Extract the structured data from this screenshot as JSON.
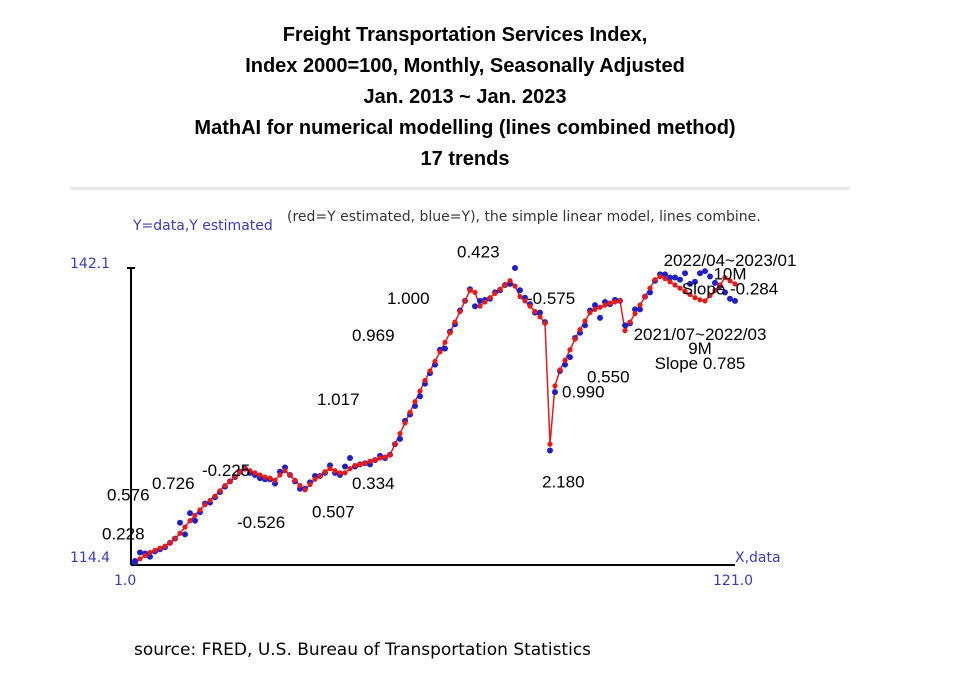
{
  "titles": {
    "line1": "Freight Transportation Services Index,",
    "line2": "Index 2000=100, Monthly, Seasonally Adjusted",
    "line3": "Jan. 2013 ~ Jan. 2023",
    "line4": "MathAI for numerical modelling (lines combined method)",
    "line5": "17 trends"
  },
  "source": "source: FRED, U.S. Bureau of Transportation Statistics",
  "colors": {
    "estimated": "#e41b1b",
    "data": "#1f1fc8",
    "axis_text": "#3b3bb5"
  },
  "chart_data": {
    "type": "scatter",
    "ylabel": "Y=data,Y estimated",
    "xlabel": "X,data",
    "note": "(red=Y estimated, blue=Y), the simple linear model, lines combine.",
    "xlim": [
      1,
      121
    ],
    "ylim": [
      114.4,
      142.1
    ],
    "x_tick_labels": [
      "1.0",
      "121.0"
    ],
    "y_tick_labels": [
      "114.4",
      "142.1"
    ],
    "series": [
      {
        "color": "#e41b1b",
        "values": [
          114.4,
          114.7,
          115.0,
          115.3,
          115.5,
          115.7,
          115.9,
          116.2,
          116.6,
          117.1,
          117.7,
          118.3,
          118.8,
          119.3,
          119.8,
          120.2,
          120.6,
          121.1,
          121.6,
          122.0,
          122.4,
          122.9,
          123.2,
          123.0,
          122.8,
          122.6,
          122.4,
          122.3,
          122.1,
          122.6,
          123.0,
          122.6,
          122.1,
          121.6,
          121.2,
          121.7,
          122.2,
          122.5,
          122.9,
          123.2,
          123.0,
          122.8,
          122.8,
          123.2,
          123.5,
          123.6,
          123.7,
          123.9,
          124.0,
          124.2,
          124.3,
          124.5,
          125.5,
          126.5,
          127.5,
          128.5,
          129.5,
          130.5,
          131.5,
          132.4,
          133.3,
          134.2,
          135.1,
          136.0,
          137.0,
          138.0,
          139.0,
          140.0,
          139.8,
          138.5,
          138.9,
          139.3,
          139.7,
          140.1,
          140.5,
          140.9,
          140.4,
          139.4,
          139.0,
          138.5,
          138.0,
          137.5,
          136.9,
          125.5,
          131.0,
          132.5,
          133.4,
          134.4,
          135.4,
          136.3,
          137.1,
          137.9,
          138.2,
          138.4,
          138.6,
          138.8,
          138.9,
          139.0,
          136.2,
          137.0,
          137.8,
          138.6,
          139.4,
          140.2,
          141.0,
          141.3,
          141.1,
          140.8,
          140.5,
          140.2,
          139.9,
          139.6,
          139.3,
          139.1,
          139.0,
          139.5,
          140.0,
          140.5,
          141.2,
          140.9,
          140.6
        ]
      },
      {
        "color": "#1f1fc8",
        "values": [
          114.5,
          115.3,
          115.2,
          114.9,
          115.4,
          115.6,
          115.8,
          116.2,
          116.6,
          118.1,
          117.0,
          119.0,
          118.3,
          119.1,
          119.9,
          120.0,
          120.5,
          121.0,
          121.5,
          122.0,
          122.4,
          122.9,
          123.2,
          122.8,
          122.6,
          122.3,
          122.2,
          122.2,
          121.8,
          122.9,
          123.3,
          122.6,
          122.0,
          121.3,
          121.3,
          121.9,
          122.5,
          122.5,
          122.8,
          123.5,
          122.8,
          122.6,
          123.4,
          124.2,
          123.4,
          123.6,
          123.7,
          123.6,
          124.0,
          124.4,
          124.2,
          124.5,
          125.5,
          126.0,
          127.7,
          128.3,
          129.1,
          130.0,
          131.2,
          132.2,
          133.0,
          134.4,
          134.5,
          136.1,
          136.8,
          138.1,
          139.0,
          140.1,
          138.5,
          139.0,
          139.1,
          139.2,
          139.8,
          140.0,
          140.5,
          140.6,
          142.1,
          140.0,
          139.3,
          138.7,
          137.9,
          137.9,
          137.0,
          124.9,
          130.4,
          132.4,
          133.0,
          133.7,
          135.5,
          136.0,
          136.7,
          138.1,
          138.6,
          137.4,
          138.9,
          138.7,
          139.1,
          139.0,
          136.7,
          136.9,
          138.2,
          138.2,
          139.4,
          139.8,
          140.9,
          141.5,
          141.5,
          141.2,
          141.2,
          141.0,
          141.6,
          140.6,
          140.8,
          141.6,
          141.8,
          141.3,
          140.7,
          140.4,
          139.8,
          139.2,
          139.0
        ]
      }
    ],
    "annotations": [
      {
        "text": "0.228",
        "x": 1,
        "y": 116.5
      },
      {
        "text": "0.576",
        "x": 2,
        "y": 120.2
      },
      {
        "text": "0.726",
        "x": 11,
        "y": 121.3
      },
      {
        "text": "-0.225",
        "x": 21,
        "y": 122.5
      },
      {
        "text": "-0.526",
        "x": 28,
        "y": 117.6
      },
      {
        "text": "0.507",
        "x": 43,
        "y": 118.6
      },
      {
        "text": "0.334",
        "x": 51,
        "y": 121.3
      },
      {
        "text": "1.017",
        "x": 44,
        "y": 129.2
      },
      {
        "text": "0.969",
        "x": 51,
        "y": 135.2
      },
      {
        "text": "1.000",
        "x": 58,
        "y": 138.7
      },
      {
        "text": "0.423",
        "x": 72,
        "y": 143.1
      },
      {
        "text": "-0.575",
        "x": 86,
        "y": 138.7
      },
      {
        "text": "2.180",
        "x": 89,
        "y": 121.4
      },
      {
        "text": "0.990",
        "x": 93,
        "y": 129.9
      },
      {
        "text": "0.550",
        "x": 98,
        "y": 131.3
      },
      {
        "text": "2022/04~2023/01",
        "x": 120,
        "y": 142.3
      },
      {
        "text": "10M",
        "x": 120,
        "y": 141.0
      },
      {
        "text": "Slope -0.284",
        "x": 120,
        "y": 139.6
      },
      {
        "text": "2021/07~2022/03",
        "x": 114,
        "y": 135.3
      },
      {
        "text": "9M",
        "x": 114,
        "y": 134.0
      },
      {
        "text": "Slope 0.785",
        "x": 114,
        "y": 132.6
      }
    ]
  }
}
